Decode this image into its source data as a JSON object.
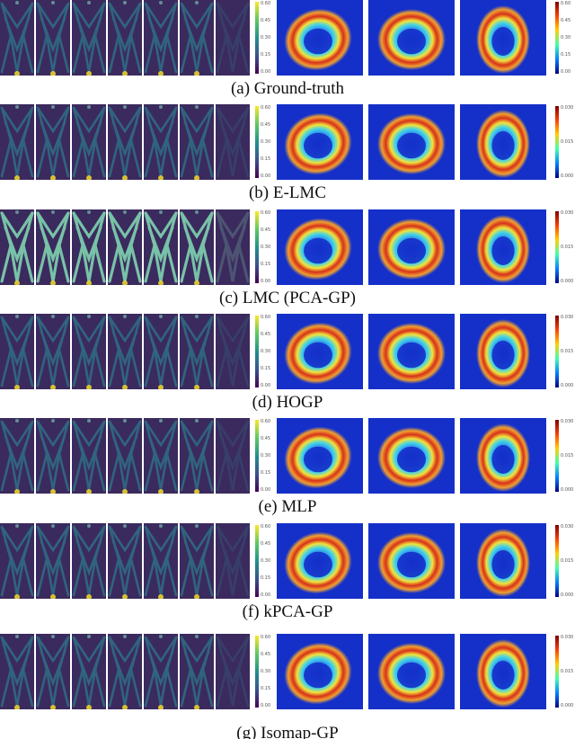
{
  "figure": {
    "rows": [
      {
        "id": "ground-truth",
        "caption": "(a) Ground-truth",
        "left_ticks": [
          "0.60",
          "0.45",
          "0.30",
          "0.15",
          "0.00"
        ],
        "right_ticks": [
          "0.60",
          "0.45",
          "0.30",
          "0.15",
          "0.00"
        ]
      },
      {
        "id": "e-lmc",
        "caption": "(b) E-LMC",
        "left_ticks": [
          "0.60",
          "0.45",
          "0.30",
          "0.15",
          "0.00"
        ],
        "right_ticks": [
          "0.030",
          "",
          "0.015",
          "",
          "0.000"
        ]
      },
      {
        "id": "lmc-pca-gp",
        "caption": "(c) LMC (PCA-GP)",
        "left_ticks": [
          "0.60",
          "0.45",
          "0.30",
          "0.15",
          "0.00"
        ],
        "right_ticks": [
          "0.030",
          "",
          "0.015",
          "",
          "0.000"
        ]
      },
      {
        "id": "hogp",
        "caption": "(d) HOGP",
        "left_ticks": [
          "0.60",
          "0.45",
          "0.30",
          "0.15",
          "0.00"
        ],
        "right_ticks": [
          "0.030",
          "",
          "0.015",
          "",
          "0.000"
        ]
      },
      {
        "id": "mlp",
        "caption": "(e) MLP",
        "left_ticks": [
          "0.60",
          "0.45",
          "0.30",
          "0.15",
          "0.00"
        ],
        "right_ticks": [
          "0.030",
          "",
          "0.015",
          "",
          "0.000"
        ]
      },
      {
        "id": "kpca-gp",
        "caption": "(f) kPCA-GP",
        "left_ticks": [
          "0.60",
          "0.45",
          "0.30",
          "0.15",
          "0.00"
        ],
        "right_ticks": [
          "0.030",
          "",
          "0.015",
          "",
          "0.000"
        ]
      },
      {
        "id": "isomap-gp",
        "caption": "(g) Isomap-GP",
        "left_ticks": [
          "0.60",
          "0.45",
          "0.30",
          "0.15",
          "0.00"
        ],
        "right_ticks": [
          "0.030",
          "",
          "0.015",
          "",
          "0.000"
        ]
      }
    ],
    "colors": {
      "viridis_dark": "#3b2a5e",
      "viridis_mid": "#2c7d8c",
      "viridis_light": "#7fd3b0",
      "viridis_yellow": "#fde725",
      "jet_blue": "#1430c8",
      "jet_red": "#d8301a",
      "jet_yellow": "#f2e33a"
    }
  }
}
